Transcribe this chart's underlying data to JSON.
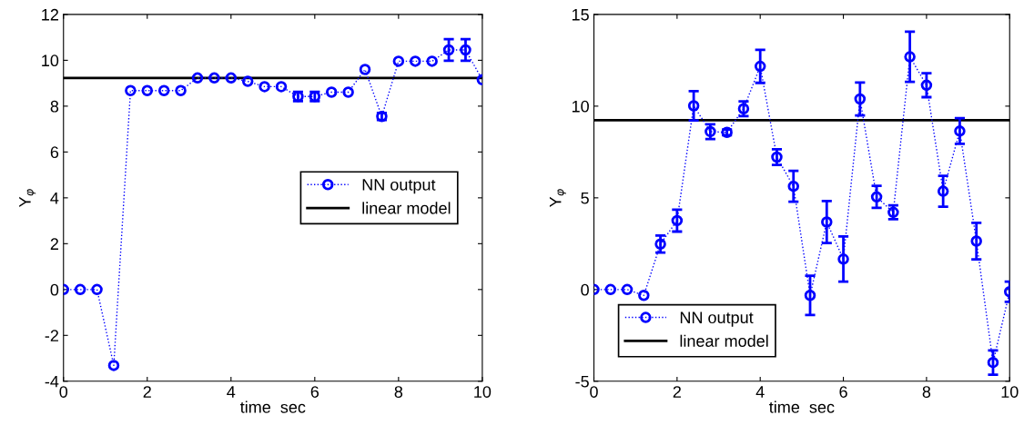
{
  "chart_data": [
    {
      "type": "line",
      "xlabel": "time  sec",
      "ylabel": "Y$_{φ}$",
      "xlim": [
        0,
        10
      ],
      "ylim": [
        -4,
        12
      ],
      "xticks": [
        0,
        2,
        4,
        6,
        8,
        10
      ],
      "yticks": [
        -4,
        -2,
        0,
        2,
        4,
        6,
        8,
        10,
        12
      ],
      "grid": false,
      "legend": "right",
      "x": [
        0,
        0.4,
        0.8,
        1.2,
        1.6,
        2.0,
        2.4,
        2.8,
        3.2,
        3.6,
        4.0,
        4.4,
        4.8,
        5.2,
        5.6,
        6.0,
        6.4,
        6.8,
        7.2,
        7.6,
        8.0,
        8.4,
        8.8,
        9.2,
        9.6,
        10
      ],
      "series": [
        {
          "name": "NN output",
          "color": "#0000ff",
          "marker": "circle",
          "line_style": "dotted",
          "values": [
            0,
            0,
            0,
            -3.31,
            8.68,
            8.68,
            8.68,
            8.68,
            9.23,
            9.23,
            9.23,
            9.08,
            8.85,
            8.85,
            8.42,
            8.42,
            8.61,
            8.61,
            9.6,
            7.55,
            9.96,
            9.96,
            9.96,
            10.45,
            10.45,
            9.15
          ],
          "errors": [
            null,
            null,
            null,
            null,
            null,
            null,
            null,
            null,
            null,
            null,
            null,
            null,
            null,
            null,
            0.2,
            0.2,
            null,
            null,
            null,
            0.15,
            null,
            null,
            null,
            0.47,
            0.47,
            null
          ]
        }
      ],
      "ref_lines": [
        {
          "axis": "y",
          "value": 9.23,
          "label": "linear model",
          "color": "#000000",
          "line_style": "solid"
        }
      ]
    },
    {
      "type": "line",
      "xlabel": "time  sec",
      "ylabel": "Y$_{φ}$",
      "xlim": [
        0,
        10
      ],
      "ylim": [
        -5,
        15
      ],
      "xticks": [
        0,
        2,
        4,
        6,
        8,
        10
      ],
      "yticks": [
        -5,
        0,
        5,
        10,
        15
      ],
      "grid": false,
      "legend": "bottom left",
      "x": [
        0,
        0.4,
        0.8,
        1.2,
        1.6,
        2.0,
        2.4,
        2.8,
        3.2,
        3.6,
        4.0,
        4.4,
        4.8,
        5.2,
        5.6,
        6.0,
        6.4,
        6.8,
        7.2,
        7.6,
        8.0,
        8.4,
        8.8,
        9.2,
        9.6,
        10
      ],
      "series": [
        {
          "name": "NN output",
          "color": "#0000ff",
          "marker": "circle",
          "line_style": "dotted",
          "values": [
            0,
            0,
            0,
            -0.32,
            2.48,
            3.76,
            10.02,
            8.61,
            8.57,
            9.86,
            12.17,
            7.22,
            5.63,
            -0.32,
            3.68,
            1.66,
            10.39,
            5.05,
            4.21,
            12.69,
            11.14,
            5.36,
            8.64,
            2.64,
            -3.98,
            -0.12
          ],
          "errors": [
            null,
            null,
            null,
            null,
            0.46,
            0.6,
            0.8,
            0.4,
            0.15,
            0.4,
            0.9,
            0.43,
            0.84,
            1.07,
            1.15,
            1.23,
            0.9,
            0.6,
            0.38,
            1.37,
            0.65,
            0.84,
            0.7,
            1.0,
            0.66,
            0.55
          ]
        }
      ],
      "ref_lines": [
        {
          "axis": "y",
          "value": 9.23,
          "label": "linear model",
          "color": "#000000",
          "line_style": "solid"
        }
      ]
    }
  ]
}
